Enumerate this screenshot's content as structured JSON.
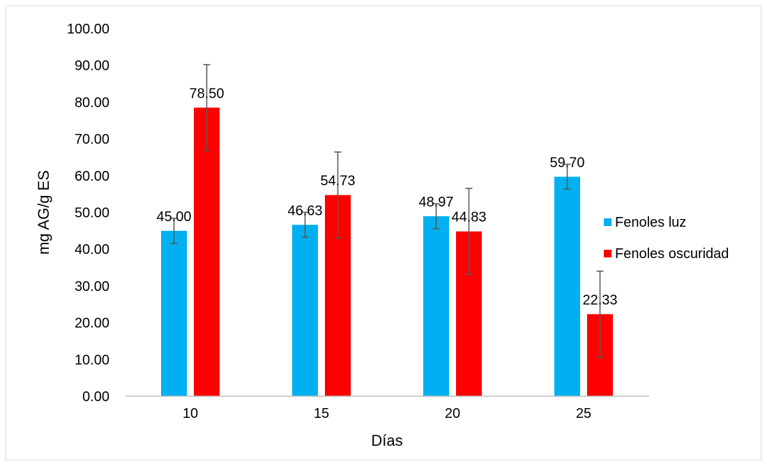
{
  "chart_data": {
    "type": "bar",
    "categories": [
      "10",
      "15",
      "20",
      "25"
    ],
    "series": [
      {
        "name": "Fenoles luz",
        "color": "#00B0F0",
        "values": [
          45.0,
          46.63,
          48.97,
          59.7
        ],
        "labels": [
          "45.00",
          "46.63",
          "48.97",
          "59.70"
        ],
        "errors": [
          3.4,
          3.4,
          3.4,
          3.4
        ]
      },
      {
        "name": "Fenoles oscuridad",
        "color": "#FF0000",
        "values": [
          78.5,
          54.73,
          44.83,
          22.33
        ],
        "labels": [
          "78.50",
          "54.73",
          "44.83",
          "22.33"
        ],
        "errors": [
          11.7,
          11.7,
          11.7,
          11.7
        ]
      }
    ],
    "xlabel": "Días",
    "ylabel": "mg AG/g ES",
    "ylim": [
      0,
      100
    ],
    "yticks": [
      "0.00",
      "10.00",
      "20.00",
      "30.00",
      "40.00",
      "50.00",
      "60.00",
      "70.00",
      "80.00",
      "90.00",
      "100.00"
    ],
    "grid": false,
    "legend_position": "right",
    "error_bar_color": "#595959"
  }
}
